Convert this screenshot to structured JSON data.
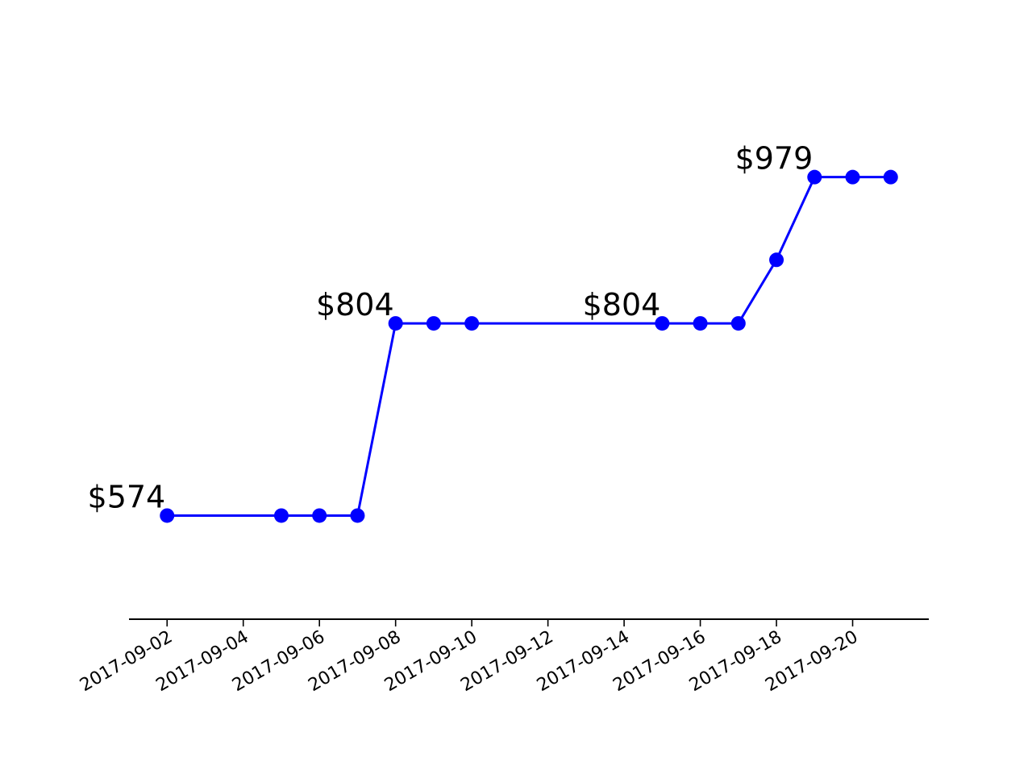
{
  "chart_data": {
    "type": "line",
    "title": "",
    "xlabel": "",
    "ylabel": "",
    "x_axis_type": "date",
    "xlim": [
      "2017-09-01",
      "2017-09-22"
    ],
    "ylim": [
      450,
      1080
    ],
    "x_ticks": [
      "2017-09-02",
      "2017-09-04",
      "2017-09-06",
      "2017-09-08",
      "2017-09-10",
      "2017-09-12",
      "2017-09-14",
      "2017-09-16",
      "2017-09-18",
      "2017-09-20"
    ],
    "y_axis_visible": false,
    "grid": false,
    "legend": "none",
    "color": "#0000ff",
    "x": [
      "2017-09-02",
      "2017-09-05",
      "2017-09-06",
      "2017-09-07",
      "2017-09-08",
      "2017-09-09",
      "2017-09-10",
      "2017-09-15",
      "2017-09-16",
      "2017-09-17",
      "2017-09-18",
      "2017-09-19",
      "2017-09-20",
      "2017-09-21"
    ],
    "y": [
      574,
      574,
      574,
      574,
      804,
      804,
      804,
      804,
      804,
      804,
      880,
      979,
      979,
      979
    ],
    "annotations": [
      {
        "x": "2017-09-02",
        "y": 574,
        "text": "$574"
      },
      {
        "x": "2017-09-08",
        "y": 804,
        "text": "$804"
      },
      {
        "x": "2017-09-15",
        "y": 804,
        "text": "$804"
      },
      {
        "x": "2017-09-19",
        "y": 979,
        "text": "$979"
      }
    ]
  }
}
